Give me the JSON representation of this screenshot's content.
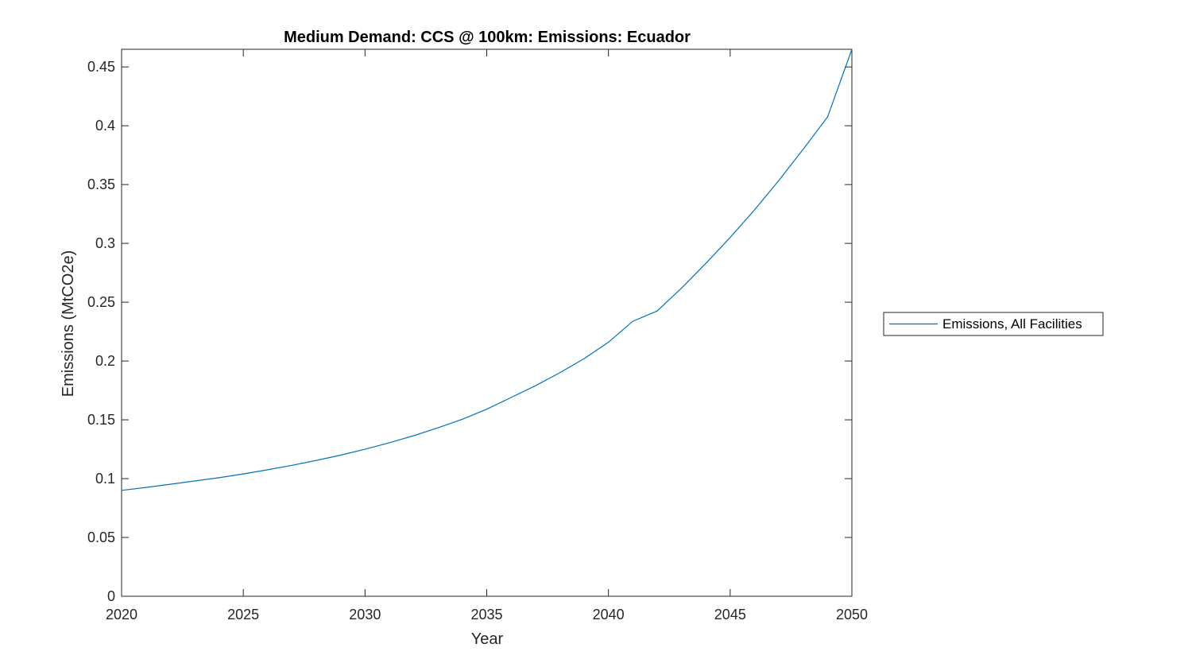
{
  "chart_data": {
    "type": "line",
    "title": "Medium Demand: CCS @ 100km: Emissions: Ecuador",
    "xlabel": "Year",
    "ylabel": "Emissions (MtCO2e)",
    "xlim": [
      2020,
      2050
    ],
    "ylim": [
      0,
      0.465
    ],
    "xticks": [
      2020,
      2025,
      2030,
      2035,
      2040,
      2045,
      2050
    ],
    "yticks": [
      0,
      0.05,
      0.1,
      0.15,
      0.2,
      0.25,
      0.3,
      0.35,
      0.4,
      0.45
    ],
    "ytick_labels": [
      "0",
      "0.05",
      "0.1",
      "0.15",
      "0.2",
      "0.25",
      "0.3",
      "0.35",
      "0.4",
      "0.45"
    ],
    "grid": false,
    "legend_position": "outside-right",
    "series": [
      {
        "name": "Emissions, All Facilities",
        "color": "#0072BD",
        "x": [
          2020,
          2021,
          2022,
          2023,
          2024,
          2025,
          2026,
          2027,
          2028,
          2029,
          2030,
          2031,
          2032,
          2033,
          2034,
          2035,
          2036,
          2037,
          2038,
          2039,
          2040,
          2041,
          2042,
          2043,
          2044,
          2045,
          2046,
          2047,
          2048,
          2049,
          2050
        ],
        "y": [
          0.09,
          0.0925,
          0.0952,
          0.098,
          0.1008,
          0.104,
          0.1075,
          0.1113,
          0.1155,
          0.12,
          0.125,
          0.1305,
          0.1365,
          0.1432,
          0.1505,
          0.159,
          0.169,
          0.179,
          0.19,
          0.202,
          0.216,
          0.2338,
          0.2425,
          0.262,
          0.283,
          0.305,
          0.3285,
          0.3535,
          0.38,
          0.4075,
          0.465
        ]
      }
    ]
  }
}
